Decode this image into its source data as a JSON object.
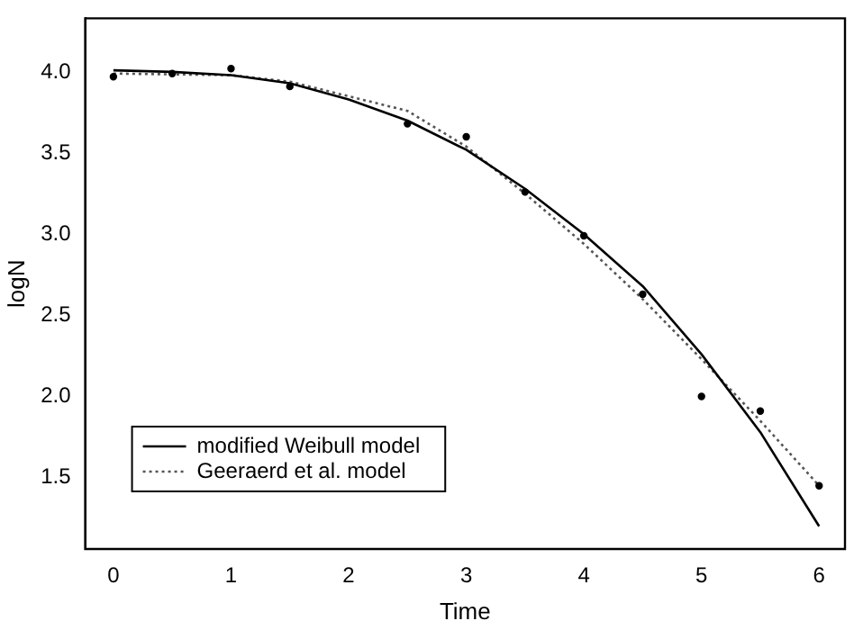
{
  "chart_data": {
    "type": "line",
    "xlabel": "Time",
    "ylabel": "logN",
    "xlim": [
      -0.24,
      6.22
    ],
    "ylim": [
      1.06,
      4.33
    ],
    "xticks": [
      0,
      1,
      2,
      3,
      4,
      5,
      6
    ],
    "yticks": [
      1.5,
      {
        "value": 2,
        "label": "2.0"
      },
      2.5,
      {
        "value": 3,
        "label": "3.0"
      },
      3.5,
      {
        "value": 4,
        "label": "4.0"
      }
    ],
    "grid": false,
    "legend": "bottom left",
    "series": [
      {
        "type": "scatter",
        "color": "#000000",
        "marker": "circle",
        "x": [
          0,
          0.5,
          1,
          1.5,
          2.5,
          3,
          3.5,
          4,
          4.5,
          5,
          5.5,
          6
        ],
        "values": [
          3.97,
          3.99,
          4.02,
          3.91,
          3.68,
          3.6,
          3.26,
          2.99,
          2.63,
          2.0,
          1.91,
          1.45
        ]
      },
      {
        "name": "modified Weibull model",
        "color": "#000000",
        "marker": "none",
        "line_style": "solid",
        "x": [
          0,
          0.5,
          1,
          1.5,
          2,
          2.5,
          3,
          3.5,
          4,
          4.5,
          5,
          5.5,
          6
        ],
        "values": [
          4.01,
          4.0,
          3.98,
          3.93,
          3.83,
          3.7,
          3.52,
          3.28,
          3.0,
          2.68,
          2.26,
          1.78,
          1.2
        ]
      },
      {
        "name": "Geeraerd et al. model",
        "color": "#555555",
        "marker": "none",
        "line_style": "dotted",
        "x": [
          0,
          1,
          1.5,
          2.5,
          3,
          3.5,
          4,
          4.5,
          5,
          5.5,
          6
        ],
        "values": [
          3.99,
          3.98,
          3.94,
          3.76,
          3.54,
          3.25,
          2.94,
          2.6,
          2.23,
          1.85,
          1.45
        ]
      }
    ]
  }
}
